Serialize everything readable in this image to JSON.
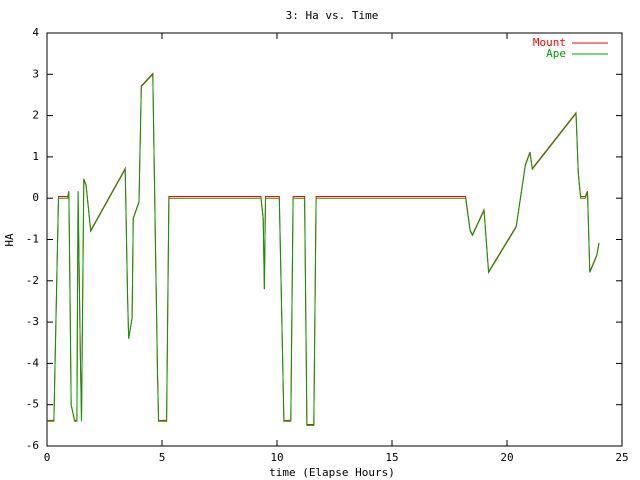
{
  "chart_data": {
    "type": "line",
    "title": "3: Ha vs. Time",
    "x_label": "time (Elapse Hours)",
    "y_label": "HA",
    "x": [
      0,
      0.3,
      0.35,
      0.45,
      0.5,
      0.9,
      0.95,
      1.0,
      1.05,
      1.2,
      1.3,
      1.35,
      1.45,
      1.5,
      1.6,
      1.7,
      1.9,
      3.4,
      3.5,
      3.55,
      3.7,
      3.75,
      4.0,
      4.1,
      4.6,
      4.65,
      4.8,
      4.85,
      5.2,
      5.3,
      9.3,
      9.4,
      9.45,
      9.5,
      10.1,
      10.3,
      10.6,
      10.7,
      11.2,
      11.3,
      11.6,
      11.7,
      18.2,
      18.4,
      18.5,
      19.0,
      19.2,
      20.4,
      20.8,
      21.0,
      21.1,
      23.0,
      23.1,
      23.2,
      23.4,
      23.5,
      23.6,
      23.9,
      24.0
    ],
    "series": [
      {
        "name": "Mount",
        "color": "#ff0000",
        "values": [
          -5.38,
          -5.38,
          -4.0,
          -1.3,
          0.04,
          0.04,
          0.17,
          -2.3,
          -5.0,
          -5.38,
          -5.38,
          0.17,
          -3.8,
          -5.38,
          0.47,
          0.32,
          -0.78,
          0.72,
          -2.3,
          -3.4,
          -2.9,
          -0.48,
          -0.08,
          2.72,
          3.02,
          1.2,
          -4.1,
          -5.38,
          -5.38,
          0.04,
          0.04,
          -0.48,
          -2.2,
          0.04,
          0.04,
          -5.38,
          -5.38,
          0.04,
          0.04,
          -5.48,
          -5.48,
          0.04,
          0.04,
          -0.78,
          -0.88,
          -0.28,
          -1.78,
          -0.68,
          0.82,
          1.12,
          0.72,
          2.07,
          0.6,
          0.04,
          0.04,
          0.17,
          -1.78,
          -1.38,
          -1.08
        ]
      },
      {
        "name": "Ape",
        "color": "#00a000",
        "values": [
          -5.4,
          -5.4,
          -4.0,
          -1.3,
          0,
          0,
          0.15,
          -2.3,
          -5.0,
          -5.4,
          -5.4,
          0.15,
          -3.8,
          -5.4,
          0.45,
          0.3,
          -0.8,
          0.7,
          -2.3,
          -3.4,
          -2.9,
          -0.5,
          -0.1,
          2.7,
          3.0,
          1.2,
          -4.1,
          -5.4,
          -5.4,
          0,
          0,
          -0.5,
          -2.2,
          0,
          0,
          -5.4,
          -5.4,
          0,
          0,
          -5.5,
          -5.5,
          0,
          0,
          -0.8,
          -0.9,
          -0.3,
          -1.8,
          -0.7,
          0.8,
          1.1,
          0.7,
          2.05,
          0.6,
          0,
          0,
          0.15,
          -1.8,
          -1.4,
          -1.1
        ]
      }
    ],
    "xlim": [
      0,
      25
    ],
    "xticks": [
      0,
      5,
      10,
      15,
      20,
      25
    ],
    "ylim": [
      -6,
      4
    ],
    "yticks": [
      -6,
      -5,
      -4,
      -3,
      -2,
      -1,
      0,
      1,
      2,
      3,
      4
    ],
    "legend": "top-right"
  }
}
